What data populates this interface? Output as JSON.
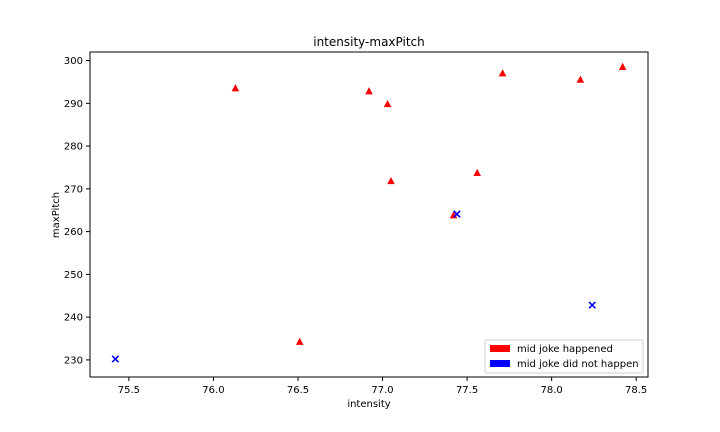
{
  "chart_data": {
    "type": "scatter",
    "title": "intensity-maxPitch",
    "xlabel": "intensity",
    "ylabel": "maxPitch",
    "xlim": [
      75.27,
      78.57
    ],
    "ylim": [
      226.0,
      302.0
    ],
    "xticks": [
      75.5,
      76.0,
      76.5,
      77.0,
      77.5,
      78.0,
      78.5
    ],
    "yticks": [
      230,
      240,
      250,
      260,
      270,
      280,
      290,
      300
    ],
    "grid": false,
    "legend_position": "lower-right",
    "series": [
      {
        "name": "mid joke happened",
        "marker": "triangle",
        "color": "#ff0000",
        "points": [
          [
            76.13,
            293.5
          ],
          [
            76.51,
            234.2
          ],
          [
            76.92,
            292.8
          ],
          [
            77.03,
            289.8
          ],
          [
            77.05,
            271.8
          ],
          [
            77.42,
            263.8
          ],
          [
            77.56,
            273.7
          ],
          [
            77.71,
            297.0
          ],
          [
            78.17,
            295.5
          ],
          [
            78.42,
            298.5
          ]
        ]
      },
      {
        "name": "mid joke did not happen",
        "marker": "x",
        "color": "#0000ff",
        "points": [
          [
            75.42,
            230.2
          ],
          [
            77.44,
            264.1
          ],
          [
            78.24,
            242.8
          ]
        ]
      }
    ]
  }
}
